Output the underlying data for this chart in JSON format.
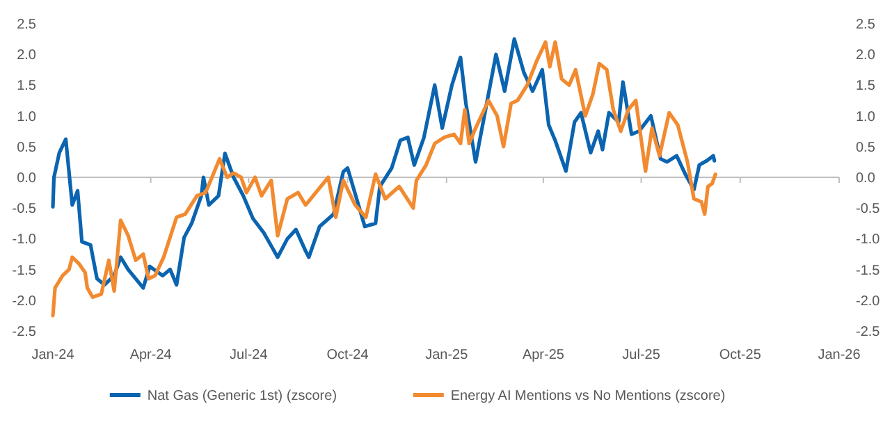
{
  "chart_data": {
    "type": "line",
    "legend": "bottom",
    "xlim": [
      "2024-01-01",
      "2026-01-01"
    ],
    "xticks": [
      {
        "value": "2024-01-01",
        "label": "Jan-24"
      },
      {
        "value": "2024-04-01",
        "label": "Apr-24"
      },
      {
        "value": "2024-07-01",
        "label": "Jul-24"
      },
      {
        "value": "2024-10-01",
        "label": "Oct-24"
      },
      {
        "value": "2025-01-01",
        "label": "Jan-25"
      },
      {
        "value": "2025-04-01",
        "label": "Apr-25"
      },
      {
        "value": "2025-07-01",
        "label": "Jul-25"
      },
      {
        "value": "2025-10-01",
        "label": "Oct-25"
      },
      {
        "value": "2026-01-01",
        "label": "Jan-26"
      }
    ],
    "ylim": [
      -2.5,
      2.5
    ],
    "yticks": [
      -2.5,
      {
        "value": -2,
        "label": "-2.0"
      },
      -1.5,
      {
        "value": -1,
        "label": "-1.0"
      },
      -0.5,
      {
        "value": 0,
        "label": "0.0"
      },
      0.5,
      {
        "value": 1,
        "label": "1.0"
      },
      1.5,
      {
        "value": 2,
        "label": "2.0"
      },
      2.5
    ],
    "y2lim": [
      -2.5,
      2.5
    ],
    "y2ticks": [
      -2.5,
      {
        "value": -2,
        "label": "-2.0"
      },
      -1.5,
      {
        "value": -1,
        "label": "-1.0"
      },
      -0.5,
      {
        "value": 0,
        "label": "0.0"
      },
      0.5,
      {
        "value": 1,
        "label": "1.0"
      },
      1.5,
      {
        "value": 2,
        "label": "2.0"
      },
      2.5
    ],
    "series": [
      {
        "name": "Nat Gas (Generic 1st) (zscore)",
        "color": "#0b64b0",
        "x": [
          "2024-01-01",
          "2024-01-02",
          "2024-01-07",
          "2024-01-13",
          "2024-01-19",
          "2024-01-24",
          "2024-01-28",
          "2024-02-05",
          "2024-02-11",
          "2024-02-18",
          "2024-02-27",
          "2024-03-04",
          "2024-03-11",
          "2024-03-25",
          "2024-03-31",
          "2024-04-12",
          "2024-04-19",
          "2024-04-25",
          "2024-05-02",
          "2024-05-09",
          "2024-05-18",
          "2024-05-20",
          "2024-05-25",
          "2024-06-03",
          "2024-06-09",
          "2024-06-17",
          "2024-06-26",
          "2024-07-05",
          "2024-07-15",
          "2024-07-28",
          "2024-08-06",
          "2024-08-14",
          "2024-08-23",
          "2024-08-26",
          "2024-09-05",
          "2024-09-18",
          "2024-09-27",
          "2024-10-01",
          "2024-10-17",
          "2024-10-27",
          "2024-10-31",
          "2024-11-11",
          "2024-11-19",
          "2024-11-26",
          "2024-12-02",
          "2024-12-11",
          "2024-12-21",
          "2024-12-28",
          "2025-01-06",
          "2025-01-14",
          "2025-01-19",
          "2025-01-28",
          "2025-02-03",
          "2025-02-16",
          "2025-02-24",
          "2025-03-05",
          "2025-03-14",
          "2025-03-22",
          "2025-03-31",
          "2025-04-06",
          "2025-04-12",
          "2025-04-22",
          "2025-04-30",
          "2025-05-06",
          "2025-05-15",
          "2025-05-22",
          "2025-05-26",
          "2025-06-01",
          "2025-06-10",
          "2025-06-14",
          "2025-06-22",
          "2025-06-29",
          "2025-07-10",
          "2025-07-19",
          "2025-07-25",
          "2025-08-03",
          "2025-08-11",
          "2025-08-19",
          "2025-08-24",
          "2025-08-31",
          "2025-09-06",
          "2025-09-07"
        ],
        "values": [
          -0.48,
          0,
          0.4,
          0.62,
          -0.45,
          -0.22,
          -1.05,
          -1.1,
          -1.65,
          -1.75,
          -1.6,
          -1.3,
          -1.5,
          -1.8,
          -1.45,
          -1.6,
          -1.5,
          -1.75,
          -0.98,
          -0.75,
          -0.3,
          0,
          -0.45,
          -0.3,
          0.39,
          0,
          -0.3,
          -0.67,
          -0.9,
          -1.3,
          -1,
          -0.85,
          -1.2,
          -1.3,
          -0.8,
          -0.6,
          0.09,
          0.15,
          -0.8,
          -0.75,
          -0.15,
          0.15,
          0.6,
          0.65,
          0.2,
          0.65,
          1.5,
          0.8,
          1.5,
          1.95,
          1.2,
          0.25,
          0.8,
          2,
          1.4,
          2.25,
          1.7,
          1.4,
          1.75,
          0.85,
          0.6,
          0.1,
          0.9,
          1.05,
          0.4,
          0.75,
          0.45,
          1.05,
          0.9,
          1.55,
          0.7,
          0.75,
          1,
          0.3,
          0.25,
          0.35,
          0.05,
          -0.2,
          0.2,
          0.27,
          0.35,
          0.27
        ]
      },
      {
        "name": "Energy AI Mentions vs No Mentions (zscore)",
        "color": "#f28a30",
        "x": [
          "2024-01-01",
          "2024-01-03",
          "2024-01-10",
          "2024-01-16",
          "2024-01-19",
          "2024-01-25",
          "2024-01-31",
          "2024-02-02",
          "2024-02-07",
          "2024-02-15",
          "2024-02-22",
          "2024-02-27",
          "2024-03-04",
          "2024-03-11",
          "2024-03-18",
          "2024-03-25",
          "2024-03-30",
          "2024-04-05",
          "2024-04-13",
          "2024-04-25",
          "2024-05-03",
          "2024-05-14",
          "2024-05-22",
          "2024-06-04",
          "2024-06-11",
          "2024-06-17",
          "2024-06-24",
          "2024-06-29",
          "2024-07-07",
          "2024-07-13",
          "2024-07-22",
          "2024-07-28",
          "2024-08-06",
          "2024-08-16",
          "2024-08-23",
          "2024-09-13",
          "2024-09-20",
          "2024-09-27",
          "2024-10-08",
          "2024-10-18",
          "2024-10-27",
          "2024-11-05",
          "2024-11-18",
          "2024-12-01",
          "2024-12-04",
          "2024-12-13",
          "2024-12-21",
          "2024-12-30",
          "2025-01-08",
          "2025-01-14",
          "2025-01-18",
          "2025-01-22",
          "2025-01-28",
          "2025-02-09",
          "2025-02-17",
          "2025-02-23",
          "2025-03-02",
          "2025-03-08",
          "2025-03-17",
          "2025-03-26",
          "2025-04-03",
          "2025-04-07",
          "2025-04-12",
          "2025-04-18",
          "2025-04-25",
          "2025-05-01",
          "2025-05-10",
          "2025-05-17",
          "2025-05-23",
          "2025-05-30",
          "2025-06-05",
          "2025-06-12",
          "2025-06-19",
          "2025-06-26",
          "2025-07-05",
          "2025-07-11",
          "2025-07-18",
          "2025-07-27",
          "2025-08-04",
          "2025-08-13",
          "2025-08-19",
          "2025-08-26",
          "2025-08-29",
          "2025-09-01",
          "2025-09-05",
          "2025-09-08"
        ],
        "values": [
          -2.25,
          -1.8,
          -1.6,
          -1.5,
          -1.3,
          -1.4,
          -1.55,
          -1.8,
          -1.95,
          -1.9,
          -1.35,
          -1.85,
          -0.7,
          -0.95,
          -1.35,
          -1.25,
          -1.65,
          -1.6,
          -1.3,
          -0.65,
          -0.6,
          -0.3,
          -0.25,
          0.3,
          0,
          0.07,
          0,
          -0.25,
          0,
          -0.3,
          -0.05,
          -0.95,
          -0.35,
          -0.25,
          -0.45,
          0,
          -0.65,
          -0.05,
          -0.45,
          -0.65,
          0.05,
          -0.35,
          -0.15,
          -0.5,
          -0.05,
          0.2,
          0.55,
          0.65,
          0.7,
          0.55,
          1.1,
          0.55,
          0.8,
          1.25,
          1,
          0.5,
          1.2,
          1.25,
          1.5,
          1.9,
          2.2,
          1.8,
          2.2,
          1.6,
          1.5,
          1.75,
          1,
          1.35,
          1.85,
          1.75,
          1.1,
          0.75,
          1.1,
          1.25,
          0.1,
          0.8,
          0.35,
          1.05,
          0.85,
          0.25,
          -0.35,
          -0.4,
          -0.6,
          -0.15,
          -0.1,
          0.05
        ]
      }
    ]
  }
}
